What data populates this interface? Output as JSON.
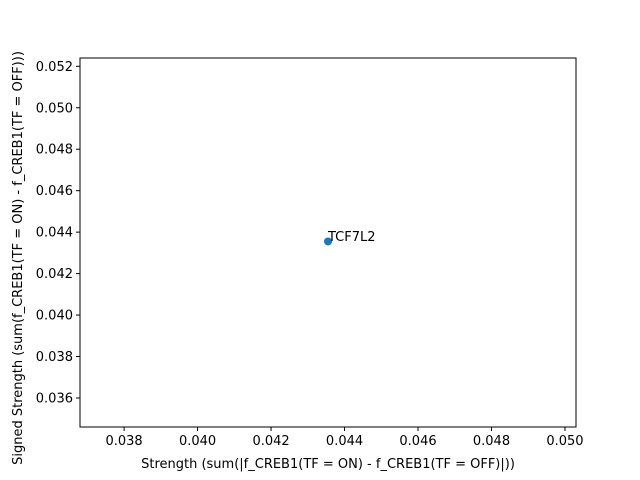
{
  "chart_data": {
    "type": "scatter",
    "title": "",
    "xlabel": "Strength (sum(|f_CREB1(TF = ON) - f_CREB1(TF = OFF)|))",
    "ylabel": "Signed Strength (sum(f_CREB1(TF = ON) - f_CREB1(TF = OFF)))",
    "xlim": [
      0.0368,
      0.0503
    ],
    "ylim": [
      0.0346,
      0.0524
    ],
    "xticks": [
      0.038,
      0.04,
      0.042,
      0.044,
      0.046,
      0.048,
      0.05
    ],
    "xtick_labels": [
      "0.038",
      "0.040",
      "0.042",
      "0.044",
      "0.046",
      "0.048",
      "0.050"
    ],
    "yticks": [
      0.036,
      0.038,
      0.04,
      0.042,
      0.044,
      0.046,
      0.048,
      0.05,
      0.052
    ],
    "ytick_labels": [
      "0.036",
      "0.038",
      "0.040",
      "0.042",
      "0.044",
      "0.046",
      "0.048",
      "0.050",
      "0.052"
    ],
    "grid": false,
    "marker_color": "#1f77b4",
    "points": [
      {
        "label": "TCF7L2",
        "x": 0.04355,
        "y": 0.04355
      }
    ]
  }
}
